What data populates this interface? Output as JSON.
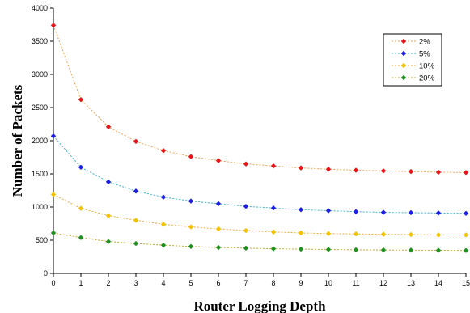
{
  "chart_data": {
    "type": "line",
    "title": "",
    "xlabel": "Router Logging Depth",
    "ylabel": "Number of Packets",
    "x": [
      0,
      1,
      2,
      3,
      4,
      5,
      6,
      7,
      8,
      9,
      10,
      11,
      12,
      13,
      14,
      15
    ],
    "xlim": [
      0,
      15
    ],
    "ylim": [
      0,
      4000
    ],
    "x_ticks": [
      "0",
      "1",
      "2",
      "3",
      "4",
      "5",
      "6",
      "7",
      "8",
      "9",
      "10",
      "11",
      "12",
      "13",
      "14",
      "15"
    ],
    "y_ticks": [
      "0",
      "500",
      "1000",
      "1500",
      "2000",
      "2500",
      "3000",
      "3500",
      "4000"
    ],
    "grid": false,
    "legend_position": "top-right",
    "series": [
      {
        "name": "2%",
        "color": "#e8141a",
        "line_color": "#f0a050",
        "values": [
          3740,
          2620,
          2210,
          1990,
          1850,
          1760,
          1700,
          1650,
          1620,
          1590,
          1570,
          1555,
          1545,
          1535,
          1525,
          1520
        ]
      },
      {
        "name": "5%",
        "color": "#1e1ee6",
        "line_color": "#39b7d6",
        "values": [
          2070,
          1600,
          1380,
          1240,
          1150,
          1090,
          1050,
          1010,
          985,
          960,
          945,
          930,
          920,
          915,
          910,
          905
        ]
      },
      {
        "name": "10%",
        "color": "#f2c200",
        "line_color": "#f2a93c",
        "values": [
          1190,
          980,
          870,
          800,
          740,
          700,
          670,
          645,
          625,
          610,
          600,
          595,
          590,
          585,
          580,
          580
        ]
      },
      {
        "name": "20%",
        "color": "#1f8f1f",
        "line_color": "#c9a830",
        "values": [
          610,
          540,
          480,
          450,
          425,
          405,
          390,
          380,
          370,
          365,
          360,
          355,
          352,
          350,
          348,
          345
        ]
      }
    ]
  }
}
